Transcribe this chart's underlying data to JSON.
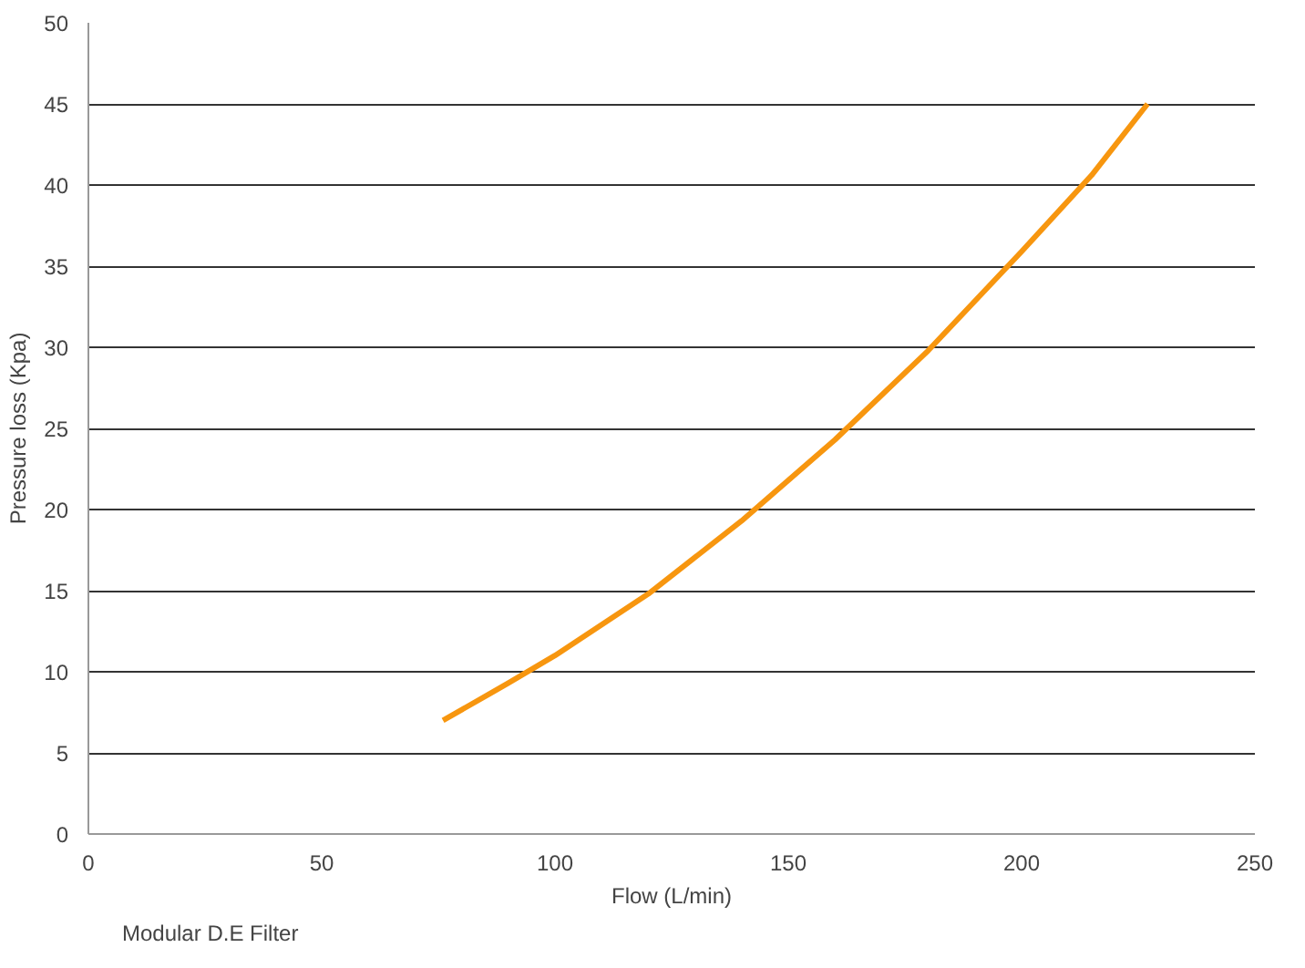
{
  "chart_data": {
    "type": "line",
    "xlabel": "Flow (L/min)",
    "ylabel": "Pressure loss (Kpa)",
    "xlim": [
      0,
      250
    ],
    "xticks": [
      0,
      50,
      100,
      150,
      200,
      250
    ],
    "ylim": [
      0,
      50
    ],
    "yticks": [
      0,
      5,
      10,
      15,
      20,
      25,
      30,
      35,
      40,
      45,
      50
    ],
    "grid": "y",
    "legend": "bottom left",
    "marker": "none",
    "line_style": "solid",
    "series": [
      {
        "name": "Modular D.E Filter",
        "color": "#f7960f",
        "x": [
          76,
          90,
          100,
          120,
          140,
          160,
          180,
          200,
          215,
          227
        ],
        "values": [
          7.0,
          9.3,
          11.0,
          14.8,
          19.3,
          24.3,
          29.8,
          35.9,
          40.6,
          45
        ]
      }
    ]
  }
}
